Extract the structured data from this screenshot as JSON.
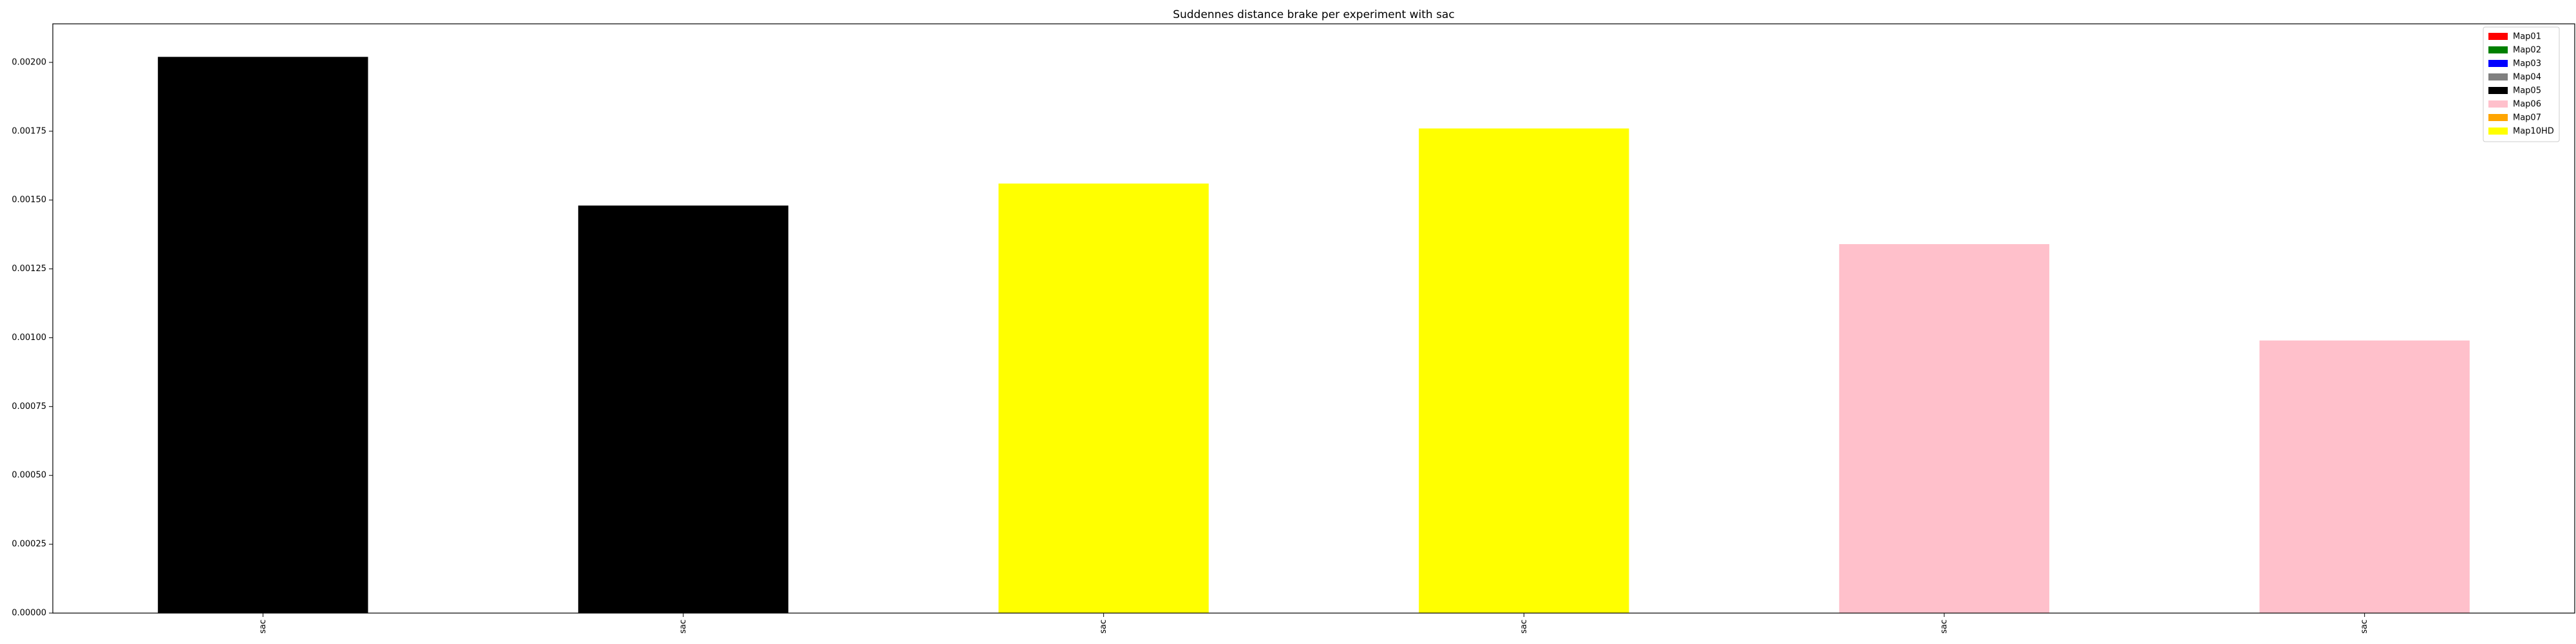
{
  "chart_data": {
    "type": "bar",
    "title": "Suddennes distance brake per experiment with sac",
    "xlabel": "",
    "ylabel": "",
    "categories": [
      "sac",
      "sac",
      "sac",
      "sac",
      "sac",
      "sac"
    ],
    "values": [
      0.00202,
      0.00148,
      0.00156,
      0.00176,
      0.00134,
      0.00099
    ],
    "bar_colors": [
      "#000000",
      "#000000",
      "#ffff00",
      "#ffff00",
      "#ffc0cb",
      "#ffc0cb"
    ],
    "ylim": [
      0,
      0.00214
    ],
    "yticks": [
      0.0,
      0.00025,
      0.0005,
      0.00075,
      0.001,
      0.00125,
      0.0015,
      0.00175,
      0.002
    ],
    "ytick_labels": [
      "0.00000",
      "0.00025",
      "0.00050",
      "0.00075",
      "0.00100",
      "0.00125",
      "0.00150",
      "0.00175",
      "0.00200"
    ],
    "grid": false,
    "legend": {
      "placement": "top-right",
      "entries": [
        {
          "label": "Map01",
          "color": "#ff0000"
        },
        {
          "label": "Map02",
          "color": "#008000"
        },
        {
          "label": "Map03",
          "color": "#0000ff"
        },
        {
          "label": "Map04",
          "color": "#808080"
        },
        {
          "label": "Map05",
          "color": "#000000"
        },
        {
          "label": "Map06",
          "color": "#ffc0cb"
        },
        {
          "label": "Map07",
          "color": "#ffa500"
        },
        {
          "label": "Map10HD",
          "color": "#ffff00"
        }
      ]
    }
  }
}
